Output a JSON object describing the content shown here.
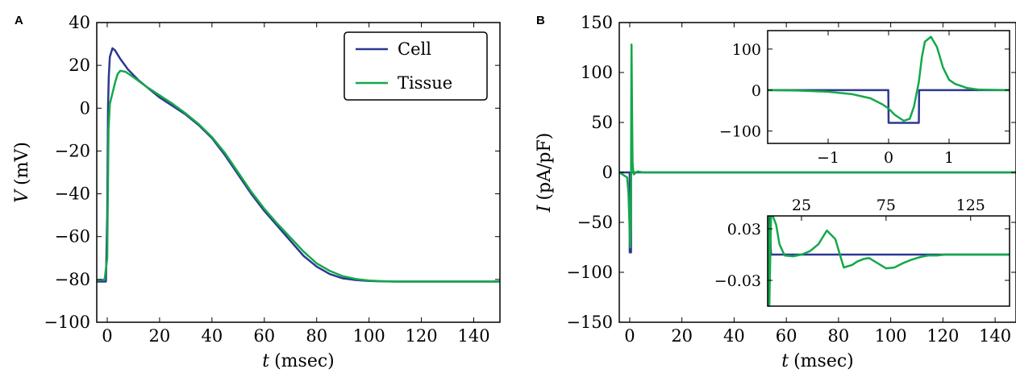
{
  "colors": {
    "cell": "#2b3990",
    "tissue": "#14a84a"
  },
  "chart_data": [
    {
      "panel": "A",
      "type": "line",
      "xlabel_var": "t",
      "xlabel_unit": "(msec)",
      "ylabel_var": "V",
      "ylabel_unit": "(mV)",
      "xlim": [
        -4,
        150
      ],
      "ylim": [
        -100,
        40
      ],
      "xticks": [
        0,
        20,
        40,
        60,
        80,
        100,
        120,
        140
      ],
      "yticks": [
        -100,
        -80,
        -60,
        -40,
        -20,
        0,
        20,
        40
      ],
      "grid": false,
      "legend": "top-right",
      "series": [
        {
          "name": "Cell",
          "color": "#2b3990",
          "x": [
            -4,
            -0.5,
            0,
            0.3,
            0.6,
            1,
            2,
            3,
            5,
            8,
            12,
            16,
            20,
            25,
            30,
            35,
            40,
            45,
            50,
            55,
            60,
            65,
            70,
            75,
            80,
            85,
            90,
            95,
            100,
            105,
            110,
            115,
            120,
            130,
            140,
            150
          ],
          "y": [
            -81,
            -81,
            -50,
            0,
            15,
            24,
            28,
            27,
            23,
            18,
            13,
            9,
            5,
            1,
            -3,
            -8,
            -14,
            -22,
            -31,
            -40,
            -48,
            -55,
            -62,
            -69,
            -74,
            -77.5,
            -79.5,
            -80.3,
            -80.7,
            -80.9,
            -81,
            -81,
            -81,
            -81,
            -81,
            -81
          ]
        },
        {
          "name": "Tissue",
          "color": "#14a84a",
          "x": [
            -4,
            -1,
            0,
            0.5,
            1,
            2,
            3,
            4,
            5,
            7,
            10,
            15,
            20,
            25,
            30,
            35,
            40,
            45,
            50,
            55,
            60,
            65,
            70,
            75,
            80,
            85,
            90,
            95,
            100,
            105,
            110,
            115,
            120,
            130,
            140,
            150
          ],
          "y": [
            -80.5,
            -80,
            -70,
            -10,
            2,
            7,
            12,
            16,
            17.5,
            17,
            14.5,
            10,
            6,
            2,
            -2.5,
            -7.5,
            -13.5,
            -21,
            -30,
            -39,
            -47,
            -54,
            -60.5,
            -67,
            -72.5,
            -76,
            -78.5,
            -79.8,
            -80.5,
            -80.8,
            -81,
            -81,
            -81,
            -81,
            -81,
            -81
          ]
        }
      ]
    },
    {
      "panel": "B",
      "type": "line",
      "xlabel_var": "t",
      "xlabel_unit": "(msec)",
      "ylabel_var": "I",
      "ylabel_unit": "(pA/pF)",
      "xlim": [
        -4,
        148
      ],
      "ylim": [
        -150,
        150
      ],
      "xticks": [
        0,
        20,
        40,
        60,
        80,
        100,
        120,
        140
      ],
      "yticks": [
        -150,
        -100,
        -50,
        0,
        50,
        100,
        150
      ],
      "grid": false,
      "series": [
        {
          "name": "",
          "color": "#2b3990",
          "x": [
            -4,
            -0.01,
            0,
            0.5,
            0.51,
            148
          ],
          "y": [
            0,
            0,
            -80,
            -80,
            0,
            0
          ]
        },
        {
          "name": "",
          "color": "#14a84a",
          "x": [
            -4,
            -1,
            -0.5,
            0,
            0.2,
            0.4,
            0.5,
            0.6,
            0.7,
            0.9,
            1.1,
            1.3,
            1.6,
            2,
            3,
            5,
            148
          ],
          "y": [
            0,
            -5,
            -20,
            -60,
            -75,
            -50,
            -10,
            80,
            128,
            60,
            10,
            3,
            -2,
            -1,
            1,
            0,
            0
          ]
        }
      ],
      "insets": [
        {
          "position": "upper-right",
          "xlim": [
            -2,
            2
          ],
          "ylim": [
            -130,
            145
          ],
          "xticks": [
            -1,
            0,
            1
          ],
          "yticks": [
            -100,
            0,
            100
          ],
          "series": [
            {
              "color": "#2b3990",
              "x": [
                -2,
                -0.005,
                0,
                0.5,
                0.505,
                2
              ],
              "y": [
                0,
                0,
                -80,
                -80,
                0,
                0
              ]
            },
            {
              "color": "#14a84a",
              "x": [
                -2,
                -1.5,
                -1,
                -0.6,
                -0.3,
                -0.1,
                0,
                0.1,
                0.25,
                0.35,
                0.42,
                0.5,
                0.55,
                0.6,
                0.7,
                0.8,
                0.9,
                1.0,
                1.1,
                1.2,
                1.3,
                1.5,
                2
              ],
              "y": [
                0,
                -1,
                -4,
                -10,
                -20,
                -35,
                -45,
                -60,
                -75,
                -70,
                -40,
                20,
                80,
                118,
                130,
                105,
                55,
                25,
                15,
                10,
                5,
                1,
                0
              ]
            }
          ]
        },
        {
          "position": "lower-right",
          "xlim": [
            5,
            148
          ],
          "ylim": [
            -0.06,
            0.045
          ],
          "xticks_top": [
            25,
            75,
            125
          ],
          "yticks": [
            -0.03,
            0.03
          ],
          "series": [
            {
              "color": "#2b3990",
              "x": [
                5,
                6,
                7,
                148
              ],
              "y": [
                -0.06,
                0.045,
                0,
                0
              ]
            },
            {
              "color": "#14a84a",
              "x": [
                5,
                5.5,
                6,
                7,
                8,
                10,
                12,
                15,
                20,
                25,
                30,
                35,
                40,
                45,
                50,
                55,
                58,
                62,
                65,
                70,
                75,
                80,
                85,
                90,
                95,
                100,
                105,
                110,
                115,
                120,
                130,
                148
              ],
              "y": [
                -0.06,
                0.045,
                -0.06,
                0.045,
                0.045,
                0.035,
                0.012,
                -0.001,
                -0.002,
                0.0,
                0.004,
                0.012,
                0.028,
                0.018,
                -0.015,
                -0.012,
                -0.008,
                -0.005,
                -0.004,
                -0.01,
                -0.016,
                -0.015,
                -0.01,
                -0.006,
                -0.003,
                -0.001,
                -0.001,
                0,
                0,
                0,
                0,
                0
              ]
            }
          ]
        }
      ]
    }
  ]
}
